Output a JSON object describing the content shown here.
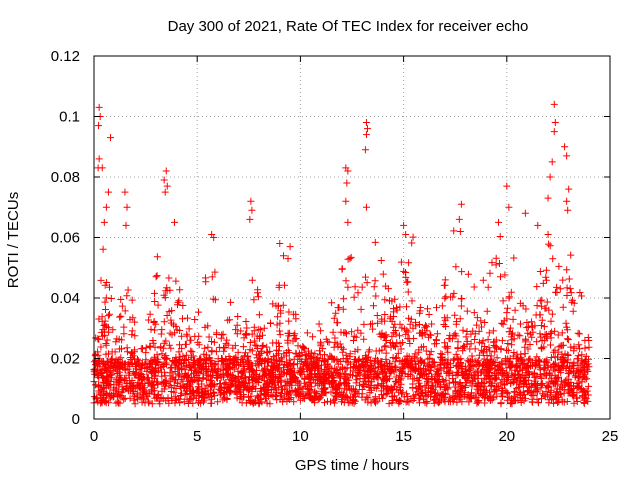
{
  "chart_data": {
    "type": "scatter",
    "title": "Day 300 of 2021, Rate Of TEC Index for receiver echo",
    "xlabel": "GPS time / hours",
    "ylabel": "ROTI / TECUs",
    "xlim": [
      0,
      25
    ],
    "ylim": [
      0,
      0.12
    ],
    "x_ticks": [
      "0",
      "5",
      "10",
      "15",
      "20",
      "25"
    ],
    "x_tick_values": [
      0,
      5,
      10,
      15,
      20,
      25
    ],
    "y_ticks": [
      "0",
      "0.02",
      "0.04",
      "0.06",
      "0.08",
      "0.1",
      "0.12"
    ],
    "y_tick_values": [
      0,
      0.02,
      0.04,
      0.06,
      0.08,
      0.1,
      0.12
    ],
    "grid": true,
    "marker": "plus",
    "color": "#ff0000",
    "x_data_range": [
      0,
      24
    ],
    "baseline_band": [
      0.005,
      0.02
    ],
    "highlighted_points": [
      {
        "x": 0.25,
        "y": 0.103
      },
      {
        "x": 0.3,
        "y": 0.1
      },
      {
        "x": 0.22,
        "y": 0.097
      },
      {
        "x": 0.25,
        "y": 0.086
      },
      {
        "x": 0.4,
        "y": 0.083
      },
      {
        "x": 0.2,
        "y": 0.083
      },
      {
        "x": 0.8,
        "y": 0.093
      },
      {
        "x": 0.7,
        "y": 0.075
      },
      {
        "x": 0.6,
        "y": 0.07
      },
      {
        "x": 0.5,
        "y": 0.065
      },
      {
        "x": 1.5,
        "y": 0.075
      },
      {
        "x": 1.6,
        "y": 0.07
      },
      {
        "x": 1.55,
        "y": 0.064
      },
      {
        "x": 3.5,
        "y": 0.082
      },
      {
        "x": 3.4,
        "y": 0.079
      },
      {
        "x": 3.55,
        "y": 0.077
      },
      {
        "x": 3.45,
        "y": 0.075
      },
      {
        "x": 3.9,
        "y": 0.065
      },
      {
        "x": 5.7,
        "y": 0.061
      },
      {
        "x": 5.8,
        "y": 0.06
      },
      {
        "x": 7.6,
        "y": 0.072
      },
      {
        "x": 7.65,
        "y": 0.069
      },
      {
        "x": 7.55,
        "y": 0.066
      },
      {
        "x": 9.0,
        "y": 0.058
      },
      {
        "x": 9.5,
        "y": 0.057
      },
      {
        "x": 9.4,
        "y": 0.053
      },
      {
        "x": 12.2,
        "y": 0.083
      },
      {
        "x": 12.3,
        "y": 0.082
      },
      {
        "x": 12.25,
        "y": 0.078
      },
      {
        "x": 12.2,
        "y": 0.072
      },
      {
        "x": 12.3,
        "y": 0.065
      },
      {
        "x": 12.4,
        "y": 0.053
      },
      {
        "x": 13.2,
        "y": 0.098
      },
      {
        "x": 13.25,
        "y": 0.096
      },
      {
        "x": 13.2,
        "y": 0.094
      },
      {
        "x": 13.15,
        "y": 0.089
      },
      {
        "x": 13.2,
        "y": 0.07
      },
      {
        "x": 15.0,
        "y": 0.064
      },
      {
        "x": 15.1,
        "y": 0.061
      },
      {
        "x": 17.8,
        "y": 0.071
      },
      {
        "x": 17.7,
        "y": 0.066
      },
      {
        "x": 17.75,
        "y": 0.062
      },
      {
        "x": 19.6,
        "y": 0.065
      },
      {
        "x": 20.0,
        "y": 0.077
      },
      {
        "x": 20.1,
        "y": 0.07
      },
      {
        "x": 20.9,
        "y": 0.068
      },
      {
        "x": 21.5,
        "y": 0.064
      },
      {
        "x": 22.0,
        "y": 0.061
      },
      {
        "x": 22.3,
        "y": 0.104
      },
      {
        "x": 22.35,
        "y": 0.098
      },
      {
        "x": 22.3,
        "y": 0.095
      },
      {
        "x": 22.2,
        "y": 0.085
      },
      {
        "x": 22.1,
        "y": 0.08
      },
      {
        "x": 22.0,
        "y": 0.073
      },
      {
        "x": 22.8,
        "y": 0.09
      },
      {
        "x": 22.9,
        "y": 0.087
      },
      {
        "x": 23.0,
        "y": 0.076
      },
      {
        "x": 22.9,
        "y": 0.072
      },
      {
        "x": 22.95,
        "y": 0.069
      }
    ],
    "active_periods": [
      {
        "center": 0.5,
        "width": 0.7,
        "level": 0.035
      },
      {
        "center": 1.6,
        "width": 0.6,
        "level": 0.03
      },
      {
        "center": 3.5,
        "width": 1.0,
        "level": 0.032
      },
      {
        "center": 5.8,
        "width": 0.8,
        "level": 0.028
      },
      {
        "center": 7.6,
        "width": 0.8,
        "level": 0.026
      },
      {
        "center": 9.2,
        "width": 0.8,
        "level": 0.03
      },
      {
        "center": 12.4,
        "width": 1.0,
        "level": 0.034
      },
      {
        "center": 13.5,
        "width": 1.0,
        "level": 0.035
      },
      {
        "center": 15.2,
        "width": 1.2,
        "level": 0.04
      },
      {
        "center": 17.8,
        "width": 1.0,
        "level": 0.036
      },
      {
        "center": 19.8,
        "width": 1.2,
        "level": 0.034
      },
      {
        "center": 22.3,
        "width": 1.6,
        "level": 0.04
      }
    ]
  }
}
